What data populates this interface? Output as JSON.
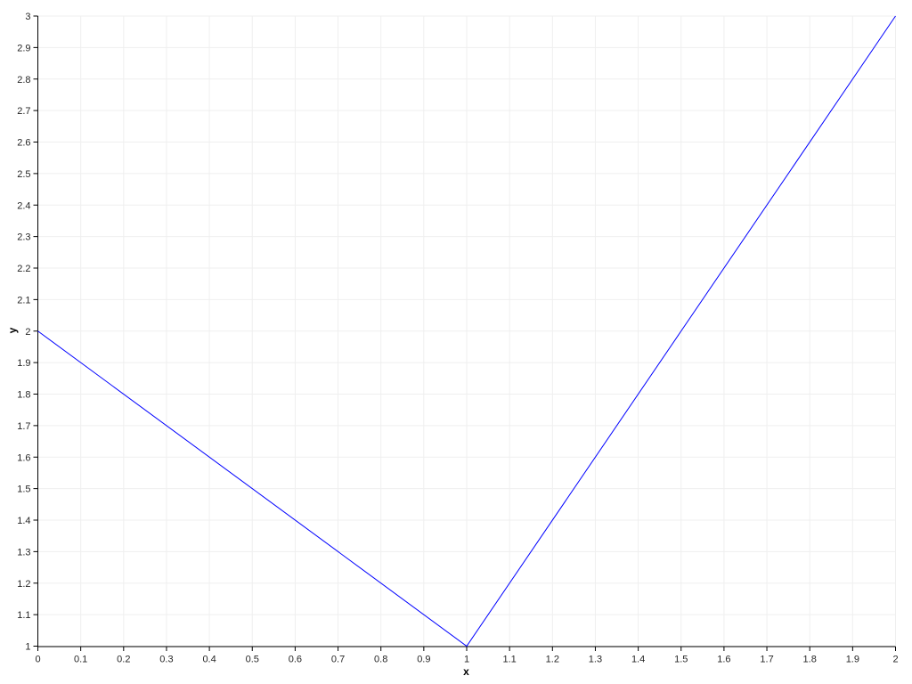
{
  "chart_data": {
    "type": "line",
    "title": "",
    "xlabel": "x",
    "ylabel": "y",
    "xlim": [
      0,
      2
    ],
    "ylim": [
      1,
      3
    ],
    "x_tick_step": 0.1,
    "y_tick_step": 0.1,
    "x_tick_labels": [
      "0",
      "0.1",
      "0.2",
      "0.3",
      "0.4",
      "0.5",
      "0.6",
      "0.7",
      "0.8",
      "0.9",
      "1",
      "1.1",
      "1.2",
      "1.3",
      "1.4",
      "1.5",
      "1.6",
      "1.7",
      "1.8",
      "1.9",
      "2"
    ],
    "y_tick_labels": [
      "1",
      "1.1",
      "1.2",
      "1.3",
      "1.4",
      "1.5",
      "1.6",
      "1.7",
      "1.8",
      "1.9",
      "2",
      "2.1",
      "2.2",
      "2.3",
      "2.4",
      "2.5",
      "2.6",
      "2.7",
      "2.8",
      "2.9",
      "3"
    ],
    "grid": true,
    "legend": "none",
    "series": [
      {
        "name": "series-1",
        "color": "#0000ff",
        "points": [
          [
            0,
            2
          ],
          [
            1,
            1
          ],
          [
            2,
            3
          ]
        ]
      }
    ],
    "colors": {
      "background": "#ffffff",
      "axis": "#000000",
      "grid": "#efefef",
      "tick_label": "#262626",
      "axis_label": "#000000"
    }
  }
}
